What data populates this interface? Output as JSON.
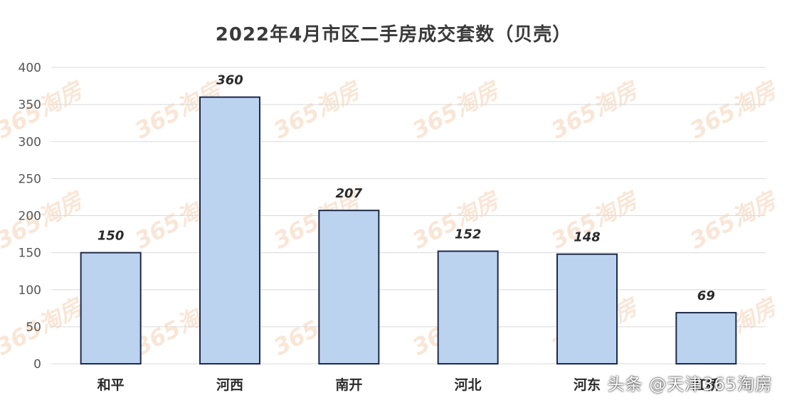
{
  "chart_data": {
    "type": "bar",
    "title": "2022年4月市区二手房成交套数（贝壳）",
    "categories": [
      "和平",
      "河西",
      "南开",
      "河北",
      "河东",
      "红桥"
    ],
    "values": [
      150,
      360,
      207,
      152,
      148,
      69
    ],
    "xlabel": "",
    "ylabel": "",
    "ylim": [
      0,
      400
    ],
    "yticks": [
      0,
      50,
      100,
      150,
      200,
      250,
      300,
      350,
      400
    ],
    "grid": true,
    "legend": "none",
    "colors": {
      "bar_fill": "#bcd3f0",
      "bar_stroke": "#1c2a4a",
      "grid": "#d9d9d9",
      "watermark": "#f3c9a6"
    }
  },
  "watermark_text": "365淘房",
  "overlay_text": "头条 @天津365淘房"
}
